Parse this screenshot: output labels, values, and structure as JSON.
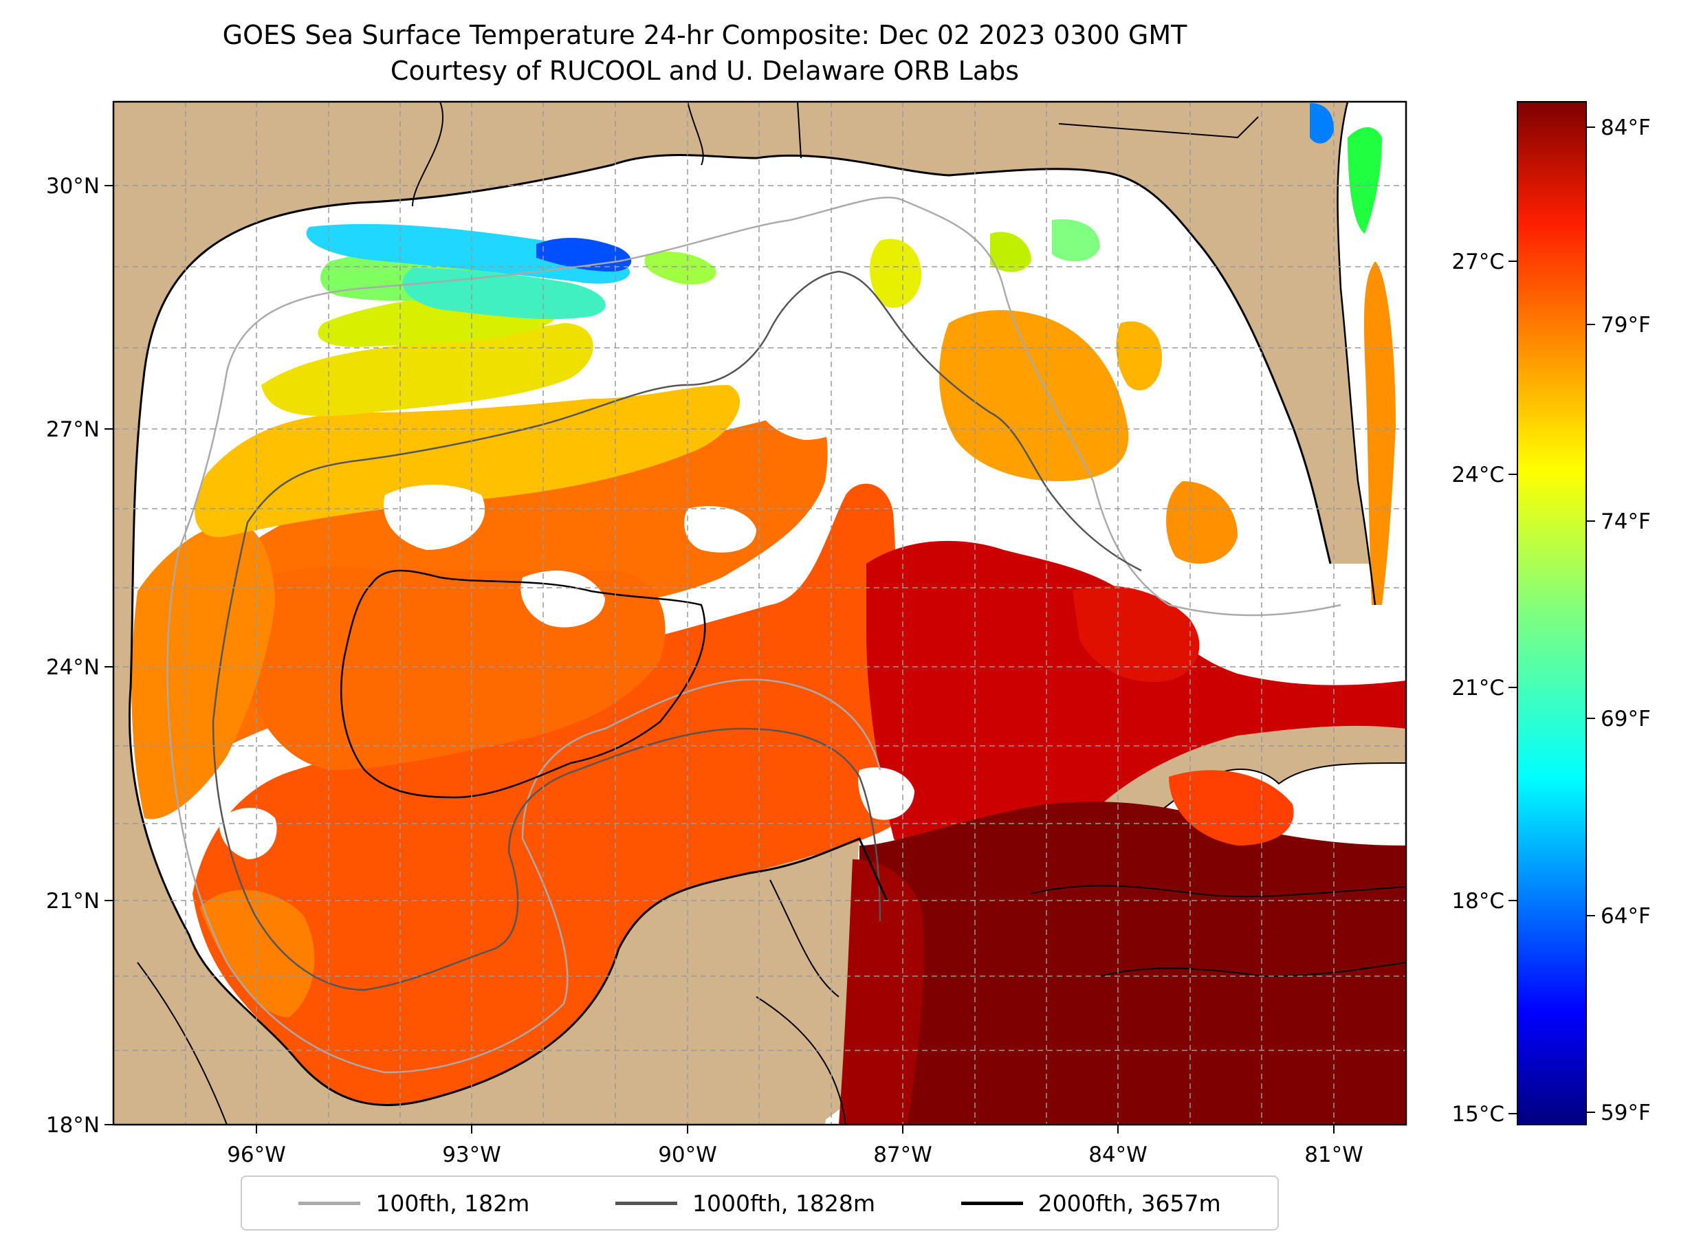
{
  "title_line1": "GOES Sea Surface Temperature 24-hr Composite: Dec 02 2023 0300 GMT",
  "title_line2": "Courtesy of RUCOOL and U. Delaware ORB Labs",
  "axes": {
    "lat_ticks": [
      "30°N",
      "27°N",
      "24°N",
      "21°N",
      "18°N"
    ],
    "lon_ticks": [
      "96°W",
      "93°W",
      "90°W",
      "87°W",
      "84°W",
      "81°W"
    ],
    "lon_range": [
      -98,
      -80
    ],
    "lat_range": [
      18,
      31
    ]
  },
  "colorbar": {
    "celsius_ticks": [
      "27°C",
      "24°C",
      "21°C",
      "18°C",
      "15°C"
    ],
    "fahrenheit_ticks": [
      "84°F",
      "79°F",
      "74°F",
      "69°F",
      "64°F",
      "59°F"
    ],
    "colormap": "jet",
    "range_c": [
      15,
      29
    ]
  },
  "legend": [
    {
      "label": "100fth, 182m",
      "color": "#aaaaaa"
    },
    {
      "label": "1000fth, 1828m",
      "color": "#555555"
    },
    {
      "label": "2000fth, 3657m",
      "color": "#000000"
    }
  ],
  "colors": {
    "land": "#d2b48c",
    "cloud_nodata": "#ffffff",
    "lake": "#8fb0e0"
  }
}
